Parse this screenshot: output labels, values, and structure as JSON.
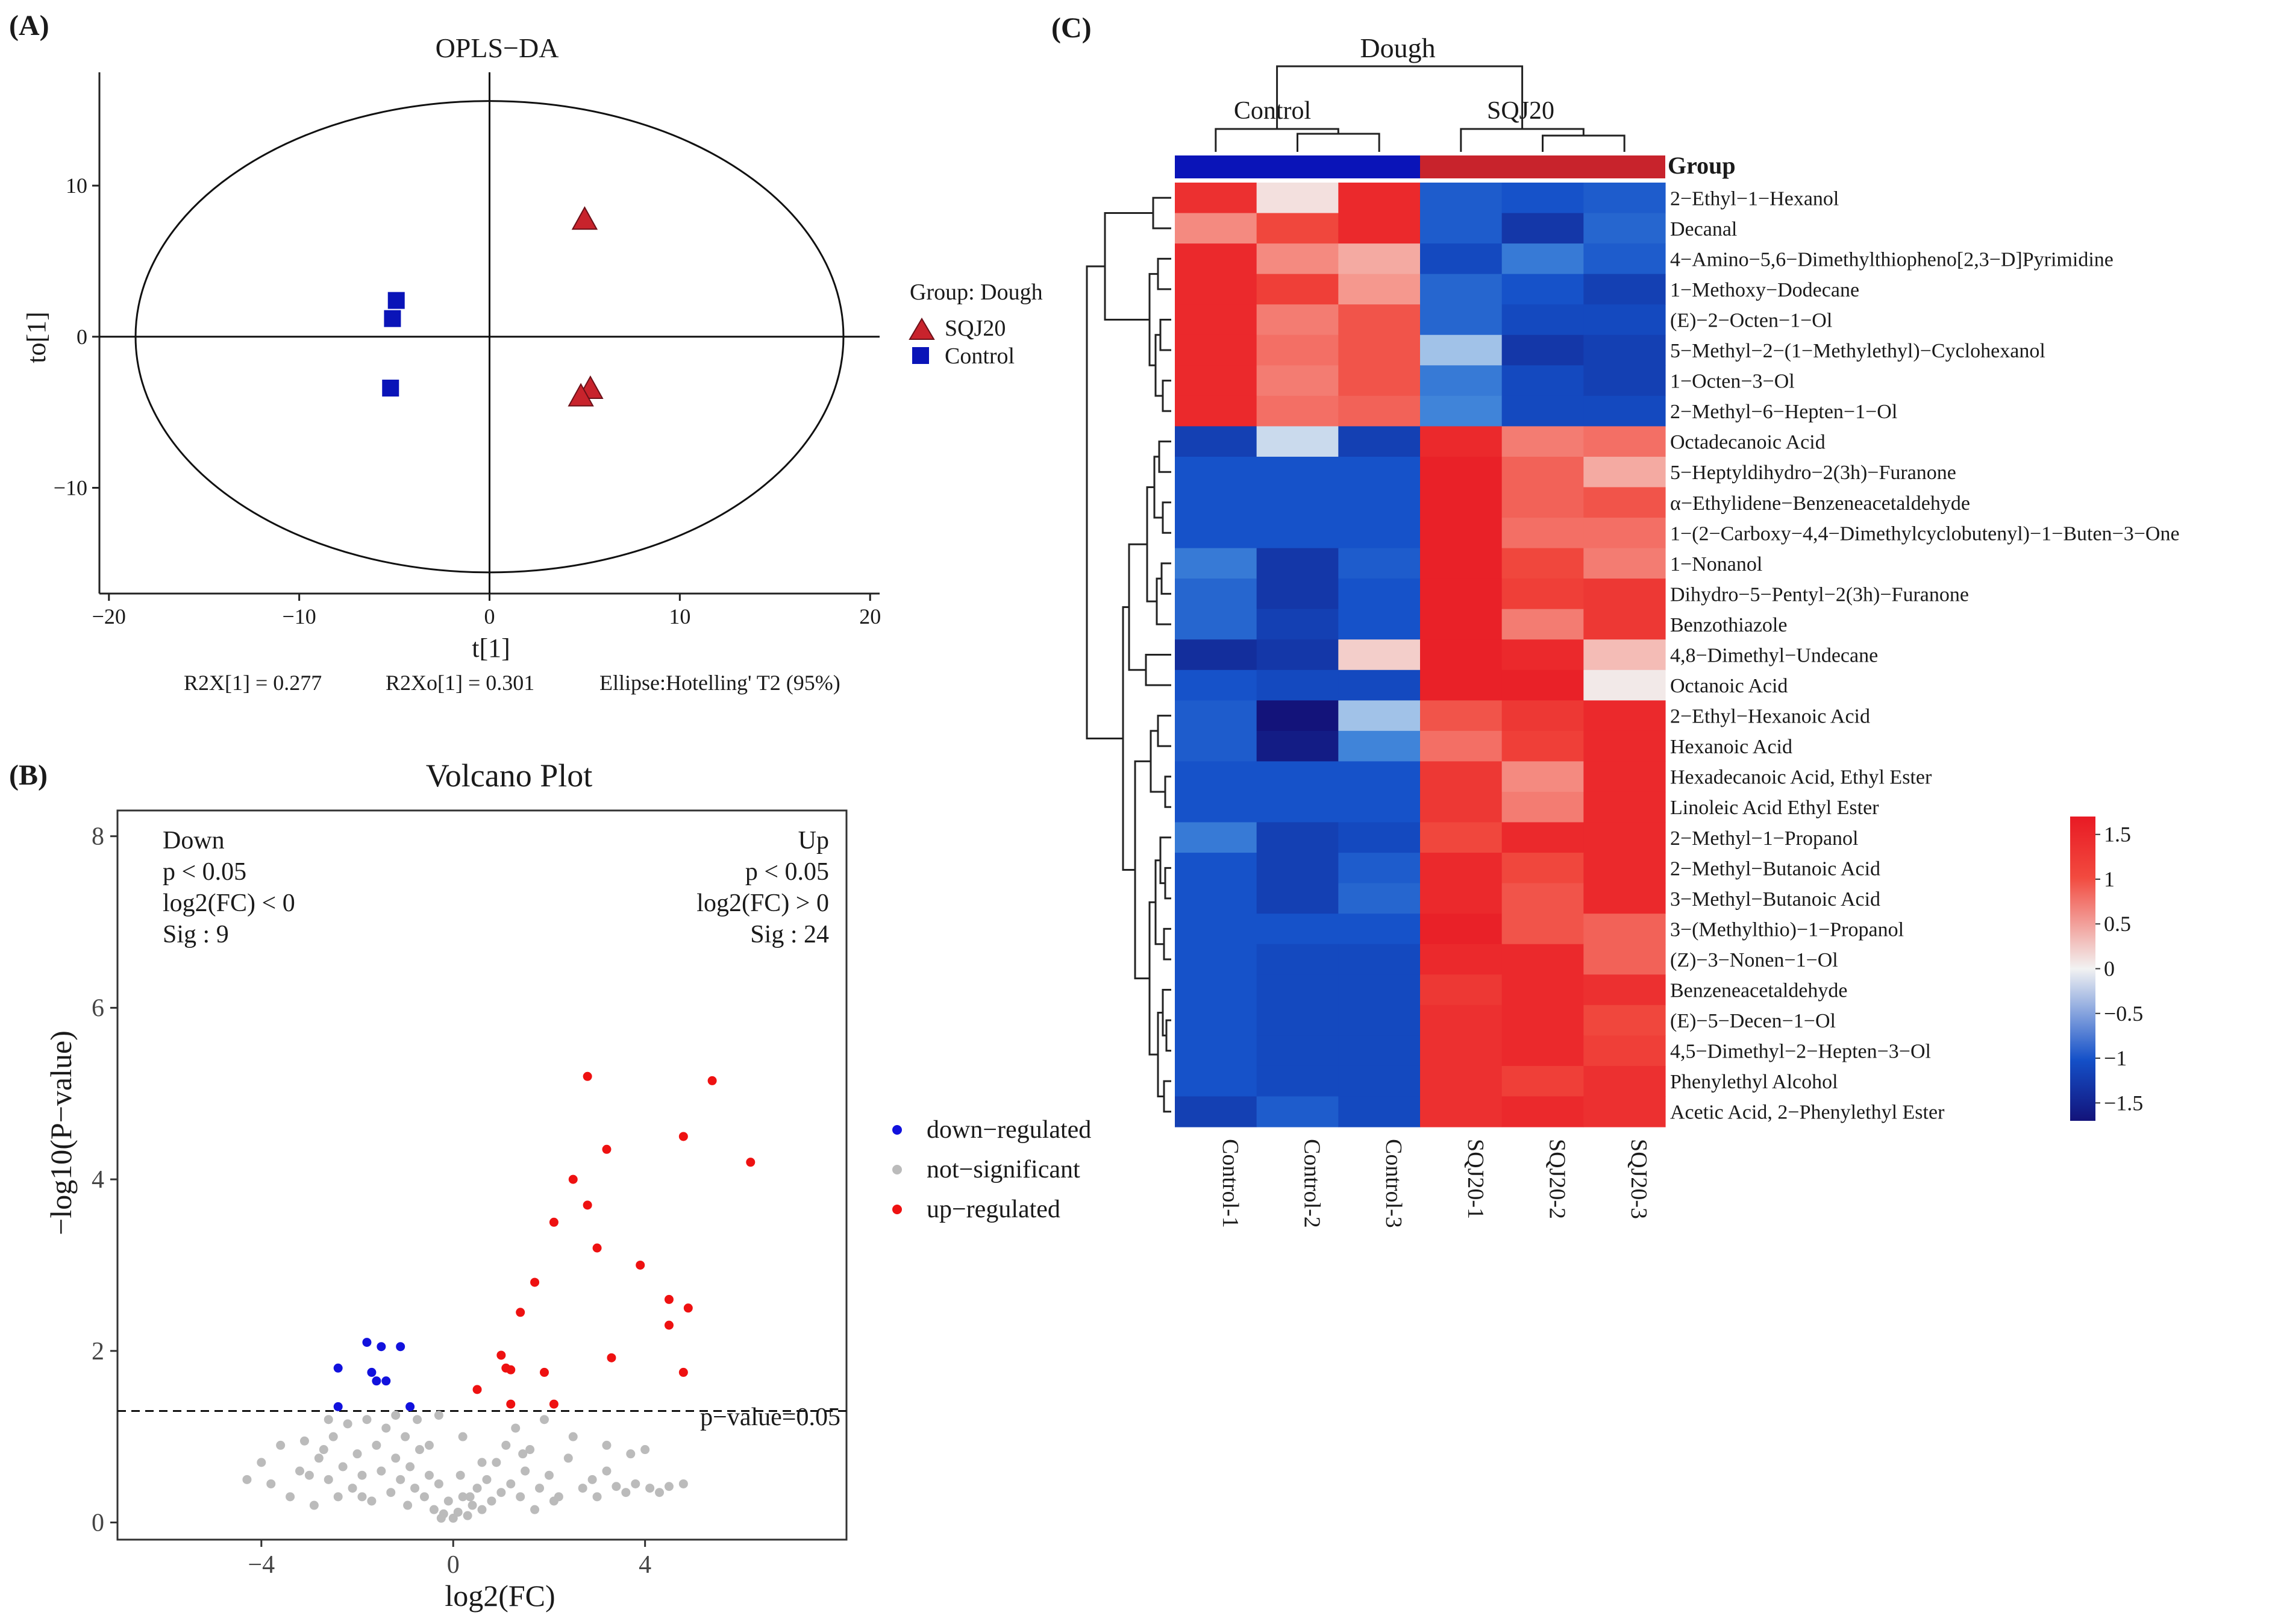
{
  "panel_labels": {
    "a": "(A)",
    "b": "(B)",
    "c": "(C)"
  },
  "colors": {
    "sqj20": "#c8232c",
    "control": "#0a14b8",
    "up": "#ee1111",
    "down": "#1111dd",
    "ns": "#bbbbbb"
  },
  "chart_data": [
    {
      "type": "scatter",
      "title": "OPLS−DA",
      "xlabel": "t[1]",
      "ylabel": "to[1]",
      "xlim": [
        -20.5,
        20.5
      ],
      "ylim": [
        -17,
        17.5
      ],
      "xticks": [
        -20,
        -10,
        0,
        10,
        20
      ],
      "xtick_labels": [
        "−20",
        "−10",
        "0",
        "10",
        "20"
      ],
      "yticks": [
        -10,
        0,
        10
      ],
      "ytick_labels": [
        "−10",
        "0",
        "10"
      ],
      "ellipse": {
        "cx": 0,
        "cy": 0,
        "rx": 18.6,
        "ry": 15.6
      },
      "legend_title": "Group: Dough",
      "series": [
        {
          "name": "SQJ20",
          "marker": "triangle",
          "points": [
            [
              5.0,
              7.8
            ],
            [
              5.3,
              -3.4
            ],
            [
              4.8,
              -3.9
            ]
          ]
        },
        {
          "name": "Control",
          "marker": "square",
          "points": [
            [
              -4.9,
              2.4
            ],
            [
              -5.1,
              1.2
            ],
            [
              -5.2,
              -3.4
            ]
          ]
        }
      ],
      "stats": [
        "R2X[1] = 0.277",
        "R2Xo[1] = 0.301",
        "Ellipse:Hotelling' T2 (95%)"
      ]
    },
    {
      "type": "scatter",
      "title": "Volcano Plot",
      "xlabel": "log2(FC)",
      "ylabel": "−log10(P−value)",
      "xlim": [
        -7,
        8.2
      ],
      "ylim": [
        -0.2,
        8.3
      ],
      "xticks": [
        -4,
        0,
        4
      ],
      "xtick_labels": [
        "−4",
        "0",
        "4"
      ],
      "yticks": [
        0,
        2,
        4,
        6,
        8
      ],
      "ytick_labels": [
        "0",
        "2",
        "4",
        "6",
        "8"
      ],
      "threshold_y": 1.3,
      "threshold_label": "p−value=0.05",
      "annot_down": [
        "Down",
        "p < 0.05",
        "log2(FC) < 0",
        "Sig : 9"
      ],
      "annot_up": [
        "Up",
        "p < 0.05",
        "log2(FC) > 0",
        "Sig : 24"
      ],
      "legend": [
        "down−regulated",
        "not−significant",
        "up−regulated"
      ],
      "down_points": [
        [
          -1.8,
          2.1
        ],
        [
          -1.5,
          2.05
        ],
        [
          -1.1,
          2.05
        ],
        [
          -2.4,
          1.8
        ],
        [
          -1.7,
          1.75
        ],
        [
          -1.4,
          1.65
        ],
        [
          -1.6,
          1.65
        ],
        [
          -0.9,
          1.35
        ],
        [
          -2.4,
          1.35
        ]
      ],
      "up_points": [
        [
          2.8,
          5.2
        ],
        [
          5.4,
          5.15
        ],
        [
          4.8,
          4.5
        ],
        [
          6.2,
          4.2
        ],
        [
          3.2,
          4.35
        ],
        [
          2.5,
          4.0
        ],
        [
          2.8,
          3.7
        ],
        [
          2.1,
          3.5
        ],
        [
          3.0,
          3.2
        ],
        [
          3.9,
          3.0
        ],
        [
          1.7,
          2.8
        ],
        [
          1.4,
          2.45
        ],
        [
          4.5,
          2.6
        ],
        [
          4.9,
          2.5
        ],
        [
          4.5,
          2.3
        ],
        [
          1.0,
          1.95
        ],
        [
          1.1,
          1.8
        ],
        [
          1.2,
          1.78
        ],
        [
          3.3,
          1.92
        ],
        [
          1.9,
          1.75
        ],
        [
          4.8,
          1.75
        ],
        [
          0.5,
          1.55
        ],
        [
          1.2,
          1.38
        ],
        [
          2.1,
          1.38
        ]
      ],
      "ns_points": [
        [
          -4.3,
          0.5
        ],
        [
          -4.0,
          0.7
        ],
        [
          -3.8,
          0.45
        ],
        [
          -3.6,
          0.9
        ],
        [
          -3.4,
          0.3
        ],
        [
          -3.2,
          0.6
        ],
        [
          -3.1,
          0.95
        ],
        [
          -2.9,
          0.2
        ],
        [
          -2.8,
          0.75
        ],
        [
          -2.6,
          0.5
        ],
        [
          -2.5,
          1.0
        ],
        [
          -2.4,
          0.3
        ],
        [
          -2.3,
          0.65
        ],
        [
          -2.2,
          1.15
        ],
        [
          -2.1,
          0.4
        ],
        [
          -2.0,
          0.8
        ],
        [
          -1.9,
          0.55
        ],
        [
          -1.8,
          1.2
        ],
        [
          -1.7,
          0.25
        ],
        [
          -1.6,
          0.9
        ],
        [
          -1.5,
          0.6
        ],
        [
          -1.4,
          1.1
        ],
        [
          -1.3,
          0.35
        ],
        [
          -1.2,
          0.75
        ],
        [
          -1.1,
          0.5
        ],
        [
          -1.0,
          1.0
        ],
        [
          -0.95,
          0.2
        ],
        [
          -0.9,
          0.65
        ],
        [
          -0.8,
          0.4
        ],
        [
          -0.7,
          0.85
        ],
        [
          -0.6,
          0.3
        ],
        [
          -0.5,
          0.55
        ],
        [
          -0.4,
          0.15
        ],
        [
          -0.3,
          0.45
        ],
        [
          -0.2,
          0.1
        ],
        [
          -0.1,
          0.25
        ],
        [
          0.0,
          0.05
        ],
        [
          0.1,
          0.12
        ],
        [
          0.2,
          0.3
        ],
        [
          0.3,
          0.08
        ],
        [
          0.4,
          0.2
        ],
        [
          0.5,
          0.4
        ],
        [
          0.6,
          0.15
        ],
        [
          0.7,
          0.5
        ],
        [
          0.8,
          0.25
        ],
        [
          0.9,
          0.7
        ],
        [
          1.0,
          0.35
        ],
        [
          1.1,
          0.9
        ],
        [
          1.2,
          0.45
        ],
        [
          1.3,
          1.1
        ],
        [
          1.4,
          0.3
        ],
        [
          1.5,
          0.6
        ],
        [
          1.6,
          0.85
        ],
        [
          1.8,
          0.4
        ],
        [
          1.9,
          1.2
        ],
        [
          2.0,
          0.55
        ],
        [
          2.2,
          0.3
        ],
        [
          2.4,
          0.75
        ],
        [
          2.5,
          1.0
        ],
        [
          2.7,
          0.4
        ],
        [
          2.9,
          0.5
        ],
        [
          3.0,
          0.3
        ],
        [
          3.2,
          0.6
        ],
        [
          3.4,
          0.42
        ],
        [
          3.6,
          0.35
        ],
        [
          3.7,
          0.8
        ],
        [
          3.8,
          0.45
        ],
        [
          4.0,
          0.85
        ],
        [
          4.1,
          0.4
        ],
        [
          4.3,
          0.35
        ],
        [
          4.5,
          0.42
        ],
        [
          4.8,
          0.45
        ],
        [
          -2.6,
          1.2
        ],
        [
          -0.3,
          1.25
        ],
        [
          0.2,
          1.0
        ],
        [
          -1.2,
          1.25
        ],
        [
          1.7,
          0.15
        ],
        [
          -3.0,
          0.55
        ],
        [
          3.2,
          0.9
        ],
        [
          -0.5,
          0.9
        ],
        [
          0.6,
          0.7
        ],
        [
          -2.7,
          0.85
        ],
        [
          2.1,
          0.25
        ],
        [
          -1.9,
          0.3
        ],
        [
          0.35,
          0.3
        ],
        [
          -0.25,
          0.05
        ],
        [
          0.15,
          0.55
        ],
        [
          -0.75,
          1.2
        ],
        [
          1.45,
          0.8
        ]
      ]
    },
    {
      "type": "heatmap",
      "title": "Dough",
      "group_title": "Group",
      "groups": [
        "Control",
        "SQJ20"
      ],
      "columns": [
        "Control-1",
        "Control-2",
        "Control-3",
        "SQJ20-1",
        "SQJ20-2",
        "SQJ20-3"
      ],
      "column_groups": [
        "Control",
        "Control",
        "Control",
        "SQJ20",
        "SQJ20",
        "SQJ20"
      ],
      "rows": [
        "2−Ethyl−1−Hexanol",
        "Decanal",
        "4−Amino−5,6−Dimethylthiopheno[2,3−D]Pyrimidine",
        "1−Methoxy−Dodecane",
        "(E)−2−Octen−1−Ol",
        "5−Methyl−2−(1−Methylethyl)−Cyclohexanol",
        "1−Octen−3−Ol",
        "2−Methyl−6−Hepten−1−Ol",
        "Octadecanoic Acid",
        "5−Heptyldihydro−2(3h)−Furanone",
        "α−Ethylidene−Benzeneacetaldehyde",
        "1−(2−Carboxy−4,4−Dimethylcyclobutenyl)−1−Buten−3−One",
        "1−Nonanol",
        "Dihydro−5−Pentyl−2(3h)−Furanone",
        "Benzothiazole",
        "4,8−Dimethyl−Undecane",
        "Octanoic Acid",
        "2−Ethyl−Hexanoic Acid",
        "Hexanoic Acid",
        "Hexadecanoic Acid, Ethyl Ester",
        "Linoleic Acid Ethyl Ester",
        "2−Methyl−1−Propanol",
        "2−Methyl−Butanoic Acid",
        "3−Methyl−Butanoic Acid",
        "3−(Methylthio)−1−Propanol",
        "(Z)−3−Nonen−1−Ol",
        "Benzeneacetaldehyde",
        "(E)−5−Decen−1−Ol",
        "4,5−Dimethyl−2−Hepten−3−Ol",
        "Phenylethyl Alcohol",
        "Acetic Acid, 2−Phenylethyl Ester"
      ],
      "values": [
        [
          1.4,
          0.1,
          1.5,
          -0.9,
          -1.0,
          -0.9
        ],
        [
          0.6,
          1.1,
          1.5,
          -0.9,
          -1.3,
          -0.8
        ],
        [
          1.5,
          0.6,
          0.4,
          -1.1,
          -0.6,
          -0.9
        ],
        [
          1.5,
          1.2,
          0.5,
          -0.8,
          -1.0,
          -1.2
        ],
        [
          1.5,
          0.7,
          1.0,
          -0.8,
          -1.1,
          -1.1
        ],
        [
          1.5,
          0.8,
          1.0,
          -0.2,
          -1.3,
          -1.2
        ],
        [
          1.5,
          0.7,
          1.0,
          -0.6,
          -1.1,
          -1.2
        ],
        [
          1.5,
          0.8,
          0.9,
          -0.5,
          -1.1,
          -1.1
        ],
        [
          -1.2,
          -0.1,
          -1.2,
          1.5,
          0.7,
          0.8
        ],
        [
          -1.0,
          -1.0,
          -1.0,
          1.6,
          0.9,
          0.4
        ],
        [
          -1.0,
          -1.0,
          -1.0,
          1.6,
          0.9,
          1.0
        ],
        [
          -1.0,
          -1.0,
          -1.0,
          1.6,
          0.8,
          0.8
        ],
        [
          -0.6,
          -1.3,
          -0.9,
          1.6,
          1.1,
          0.7
        ],
        [
          -0.8,
          -1.3,
          -1.0,
          1.6,
          1.2,
          1.3
        ],
        [
          -0.8,
          -1.2,
          -1.0,
          1.6,
          0.7,
          1.3
        ],
        [
          -1.4,
          -1.3,
          0.2,
          1.6,
          1.5,
          0.3
        ],
        [
          -1.0,
          -1.1,
          -1.1,
          1.6,
          1.6,
          0.05
        ],
        [
          -0.9,
          -1.7,
          -0.2,
          1.0,
          1.3,
          1.5
        ],
        [
          -0.9,
          -1.6,
          -0.5,
          0.8,
          1.2,
          1.5
        ],
        [
          -1.0,
          -1.0,
          -1.0,
          1.3,
          0.6,
          1.5
        ],
        [
          -1.0,
          -1.0,
          -1.0,
          1.3,
          0.7,
          1.5
        ],
        [
          -0.6,
          -1.2,
          -1.1,
          1.1,
          1.5,
          1.5
        ],
        [
          -1.0,
          -1.2,
          -0.9,
          1.5,
          1.1,
          1.5
        ],
        [
          -1.0,
          -1.2,
          -0.8,
          1.5,
          1.0,
          1.5
        ],
        [
          -1.0,
          -1.0,
          -1.0,
          1.6,
          1.0,
          0.9
        ],
        [
          -1.0,
          -1.1,
          -1.1,
          1.5,
          1.5,
          0.9
        ],
        [
          -1.0,
          -1.1,
          -1.1,
          1.3,
          1.5,
          1.4
        ],
        [
          -1.0,
          -1.1,
          -1.1,
          1.4,
          1.5,
          1.1
        ],
        [
          -1.0,
          -1.1,
          -1.1,
          1.4,
          1.5,
          1.2
        ],
        [
          -1.0,
          -1.1,
          -1.1,
          1.4,
          1.2,
          1.4
        ],
        [
          -1.2,
          -0.9,
          -1.1,
          1.4,
          1.5,
          1.4
        ]
      ],
      "color_range": [
        -1.7,
        1.7
      ],
      "legend_ticks": [
        1.5,
        1,
        0.5,
        0,
        -0.5,
        -1,
        -1.5
      ],
      "legend_tick_labels": [
        "1.5",
        "1",
        "0.5",
        "0",
        "−0.5",
        "−1",
        "−1.5"
      ]
    }
  ]
}
